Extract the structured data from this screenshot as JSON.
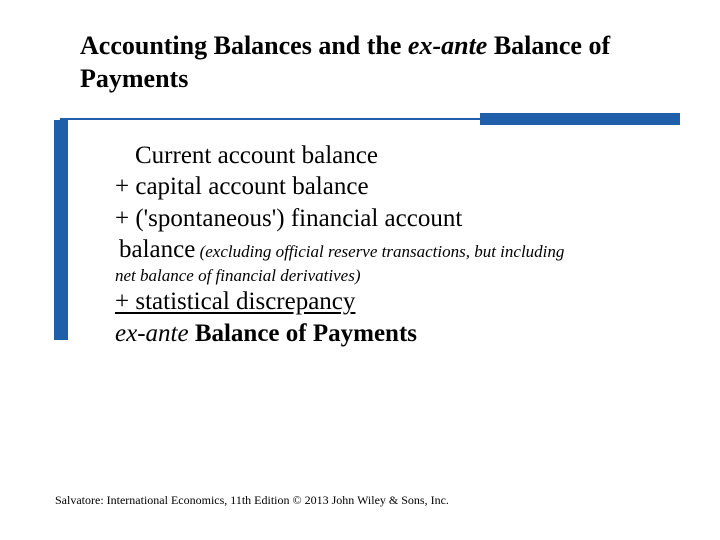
{
  "title": {
    "prefix": "Accounting Balances and the ",
    "italic": "ex-ante",
    "suffix": " Balance of Payments"
  },
  "body": {
    "line1_indent": "Current account balance",
    "line2": "+ capital account balance",
    "line3a": "+ ('spontaneous') financial account",
    "line3b_hang": "balance",
    "line3b_small_tail": " (excluding official reserve transactions, but including",
    "line3c_small": "net balance of financial derivatives)",
    "line4_underline": "+  statistical discrepancy",
    "line5_italic": " ex-ante",
    "line5_bold": " Balance of Payments"
  },
  "footer": "Salvatore: International Economics, 11th Edition © 2013 John Wiley & Sons, Inc.",
  "colors": {
    "accent": "#1f5ea8",
    "text": "#000000",
    "background": "#ffffff"
  }
}
